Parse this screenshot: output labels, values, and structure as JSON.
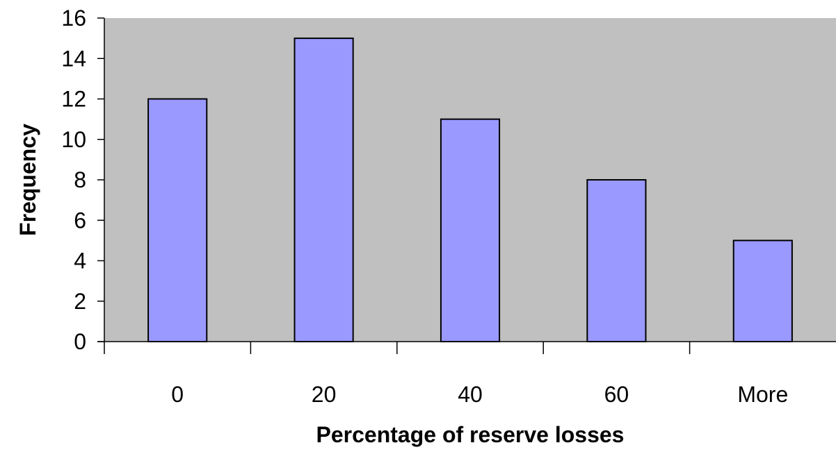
{
  "chart_data": {
    "type": "bar",
    "title": "",
    "xlabel": "Percentage of reserve losses",
    "ylabel": "Frequency",
    "categories": [
      "0",
      "20",
      "40",
      "60",
      "More"
    ],
    "values": [
      12,
      15,
      11,
      8,
      5
    ],
    "ylim": [
      0,
      16
    ],
    "yticks": [
      "0",
      "2",
      "4",
      "6",
      "8",
      "10",
      "12",
      "14",
      "16"
    ],
    "grid": false,
    "legend": "none",
    "colors": {
      "plot_background": "#c0c0c0",
      "bar_fill": "#9999ff",
      "bar_stroke": "#000000",
      "axis": "#000000"
    }
  }
}
